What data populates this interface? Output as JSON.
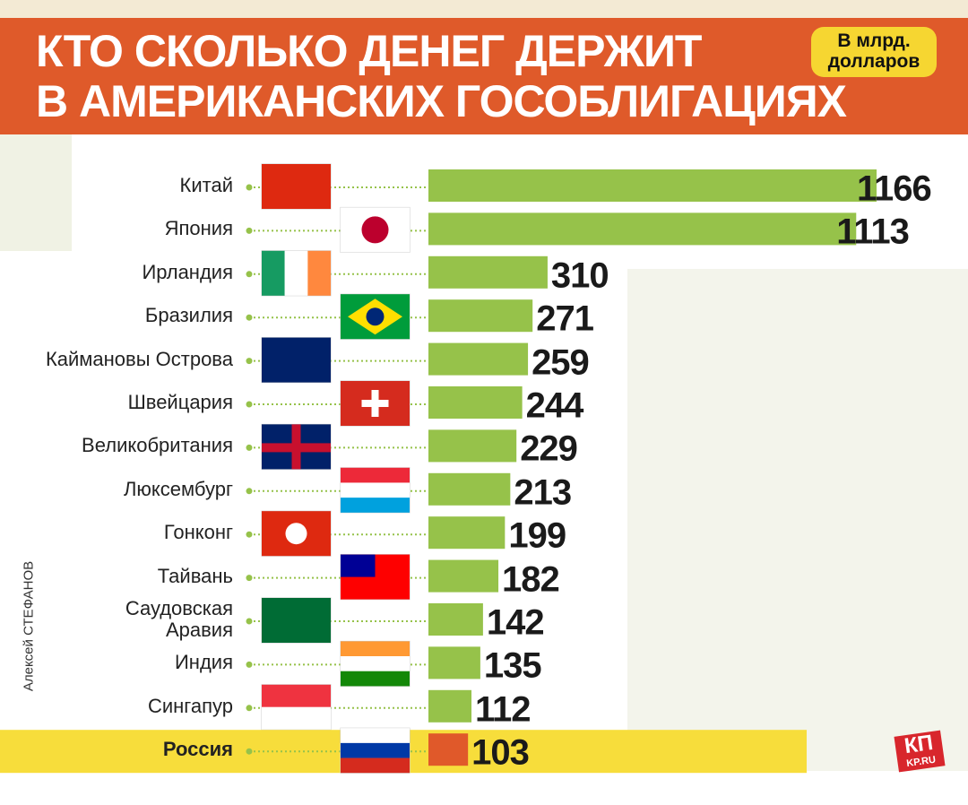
{
  "chart_data": {
    "type": "bar",
    "orientation": "horizontal",
    "title": [
      "КТО СКОЛЬКО ДЕНЕГ ДЕРЖИТ",
      "В АМЕРИКАНСКИХ ГОСОБЛИГАЦИЯХ"
    ],
    "unit": [
      "В млрд.",
      "долларов"
    ],
    "author": "Алексей СТЕФАНОВ",
    "logo": "КП",
    "logo_sub": "KP.RU",
    "categories": [
      "Китай",
      "Япония",
      "Ирландия",
      "Бразилия",
      "Каймановы Острова",
      "Швейцария",
      "Великобритания",
      "Люксембург",
      "Гонконг",
      "Тайвань",
      "Саудовская\nАравия",
      "Индия",
      "Сингапур",
      "Россия"
    ],
    "values": [
      1166,
      1113,
      310,
      271,
      259,
      244,
      229,
      213,
      199,
      182,
      142,
      135,
      112,
      103
    ],
    "color": "#96c24a",
    "colors": [
      "#96c24a",
      "#96c24a",
      "#96c24a",
      "#96c24a",
      "#96c24a",
      "#96c24a",
      "#96c24a",
      "#96c24a",
      "#96c24a",
      "#96c24a",
      "#96c24a",
      "#96c24a",
      "#96c24a",
      "#e0592a"
    ],
    "highlight_band_color": "#f7dd3b"
  }
}
